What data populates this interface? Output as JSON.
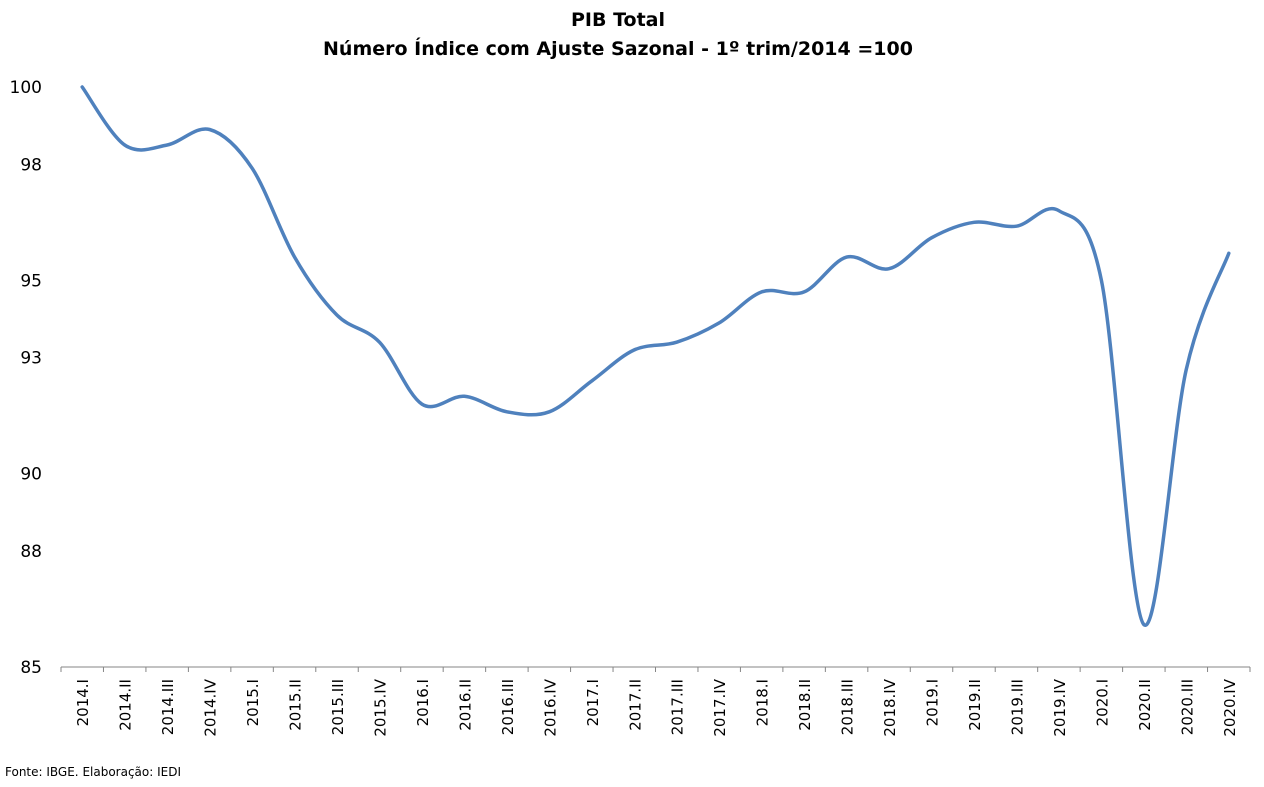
{
  "chart_data": {
    "type": "line",
    "title": "PIB Total",
    "subtitle": "Número Índice com Ajuste Sazonal - 1º trim/2014 =100",
    "xlabel": "",
    "ylabel": "",
    "ylim": [
      85,
      100
    ],
    "yticks": [
      85,
      88,
      90,
      93,
      95,
      98,
      100
    ],
    "ytick_labels": [
      "85",
      "88",
      "90",
      "93",
      "95",
      "98",
      "100"
    ],
    "grid": false,
    "legend": "none",
    "categories": [
      "2014.I",
      "2014.II",
      "2014.III",
      "2014.IV",
      "2015.I",
      "2015.II",
      "2015.III",
      "2015.IV",
      "2016.I",
      "2016.II",
      "2016.III",
      "2016.IV",
      "2017.I",
      "2017.II",
      "2017.III",
      "2017.IV",
      "2018.I",
      "2018.II",
      "2018.III",
      "2018.IV",
      "2019.I",
      "2019.II",
      "2019.III",
      "2019.IV",
      "2020.I",
      "2020.II",
      "2020.III",
      "2020.IV"
    ],
    "series": [
      {
        "values": [
          100.0,
          98.5,
          98.5,
          98.9,
          97.9,
          95.6,
          94.1,
          93.4,
          91.8,
          92.0,
          91.6,
          91.6,
          92.4,
          93.2,
          93.4,
          93.9,
          94.7,
          94.7,
          95.6,
          95.3,
          96.1,
          96.5,
          96.4,
          96.8,
          95.0,
          86.1,
          92.7,
          95.7
        ],
        "color": "#4f81bd"
      }
    ]
  },
  "source_note": "Fonte: IBGE. Elaboração: IEDI"
}
